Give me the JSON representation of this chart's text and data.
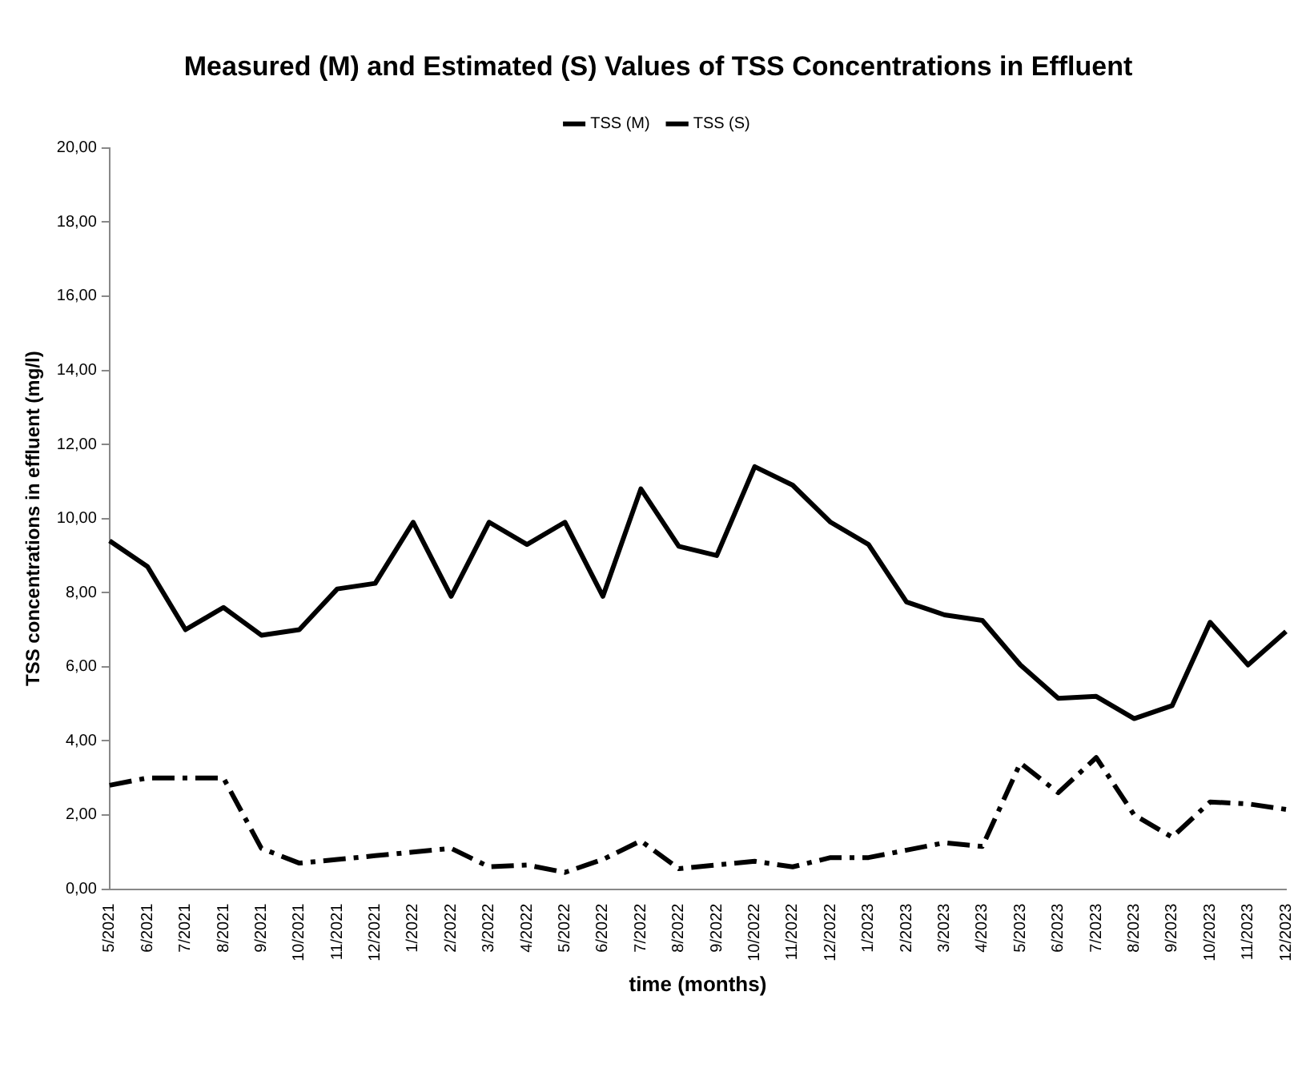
{
  "chart_data": {
    "type": "line",
    "title": "Measured (M) and Estimated (S) Values of TSS Concentrations in Effluent",
    "xlabel": "time (months)",
    "ylabel": "TSS concentrations in effluent (mg/l)",
    "categories": [
      "5/2021",
      "6/2021",
      "7/2021",
      "8/2021",
      "9/2021",
      "10/2021",
      "11/2021",
      "12/2021",
      "1/2022",
      "2/2022",
      "3/2022",
      "4/2022",
      "5/2022",
      "6/2022",
      "7/2022",
      "8/2022",
      "9/2022",
      "10/2022",
      "11/2022",
      "12/2022",
      "1/2023",
      "2/2023",
      "3/2023",
      "4/2023",
      "5/2023",
      "6/2023",
      "7/2023",
      "8/2023",
      "9/2023",
      "10/2023",
      "11/2023",
      "12/2023"
    ],
    "series": [
      {
        "name": "TSS (M)",
        "color": "#000000",
        "line_style": "dashed",
        "values": [
          2.8,
          3.0,
          3.0,
          3.0,
          1.1,
          0.7,
          0.8,
          0.9,
          1.0,
          1.1,
          0.6,
          0.65,
          0.45,
          0.8,
          1.3,
          0.55,
          0.65,
          0.75,
          0.6,
          0.85,
          0.85,
          1.05,
          1.25,
          1.15,
          3.4,
          2.6,
          3.55,
          2.0,
          1.4,
          2.35,
          2.3,
          2.15
        ]
      },
      {
        "name": "TSS (S)",
        "color": "#000000",
        "line_style": "solid",
        "values": [
          9.4,
          8.7,
          7.0,
          7.6,
          6.85,
          7.0,
          8.1,
          8.25,
          9.9,
          7.9,
          9.9,
          9.3,
          9.9,
          7.9,
          10.8,
          9.25,
          9.0,
          11.4,
          10.9,
          9.9,
          9.3,
          7.75,
          7.4,
          7.25,
          6.05,
          5.15,
          5.2,
          4.6,
          4.95,
          7.2,
          6.05,
          6.95
        ]
      }
    ],
    "ylim": [
      0,
      20
    ],
    "yticks": [
      {
        "value": 0,
        "label": "0,00"
      },
      {
        "value": 2,
        "label": "2,00"
      },
      {
        "value": 4,
        "label": "4,00"
      },
      {
        "value": 6,
        "label": "6,00"
      },
      {
        "value": 8,
        "label": "8,00"
      },
      {
        "value": 10,
        "label": "10,00"
      },
      {
        "value": 12,
        "label": "12,00"
      },
      {
        "value": 14,
        "label": "14,00"
      },
      {
        "value": 16,
        "label": "16,00"
      },
      {
        "value": 18,
        "label": "18,00"
      },
      {
        "value": 20,
        "label": "20,00"
      }
    ],
    "grid": false,
    "legend": "top",
    "marker": "none"
  }
}
